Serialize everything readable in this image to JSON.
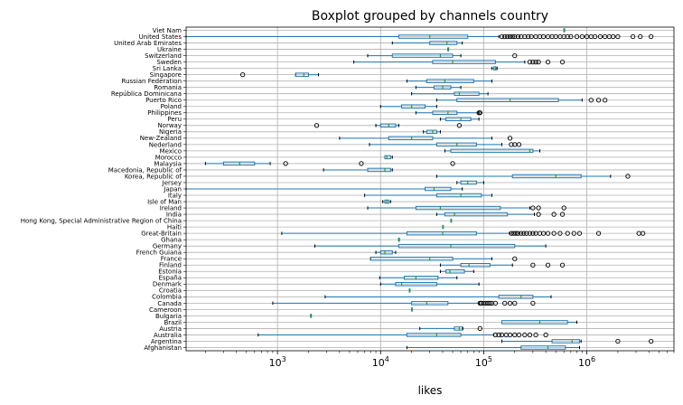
{
  "chart_data": {
    "type": "boxplot",
    "title": "Boxplot grouped by channels country",
    "xlabel": "likes",
    "ylabel": "",
    "xscale": "log",
    "xlim": [
      130,
      7000000
    ],
    "x_ticks": [
      {
        "value": 1000,
        "base": "10",
        "exp": "3"
      },
      {
        "value": 10000,
        "base": "10",
        "exp": "4"
      },
      {
        "value": 100000,
        "base": "10",
        "exp": "5"
      },
      {
        "value": 1000000,
        "base": "10",
        "exp": "6"
      }
    ],
    "grid": true,
    "colors": {
      "box": "#1f77b4",
      "median": "#2ca02c",
      "flier": "#000000",
      "grid": "#b0b0b0"
    },
    "categories": [
      "Afghanistan",
      "Argentina",
      "Australia",
      "Austria",
      "Brazil",
      "Bulgaria",
      "Cameroon",
      "Canada",
      "Colombia",
      "Croatia",
      "Denmark",
      "España",
      "Estonia",
      "Finland",
      "France",
      "French Guiana",
      "Germany",
      "Ghana",
      "Great-Britain",
      "Haiti",
      "Hong Kong, Special Administrative Region of China",
      "India",
      "Ireland",
      "Isle of Man",
      "Italy",
      "Japan",
      "Jersey",
      "Korea, Republic of",
      "Macedonia, Republic of",
      "Malaysia",
      "Morocco",
      "Mexico",
      "Nederland",
      "New-Zealand",
      "Nigeria",
      "Norway",
      "Peru",
      "Philippines",
      "Poland",
      "Puerto Rico",
      "República Dominicana",
      "Romania",
      "Russian Federation",
      "Singapore",
      "Sri Lanka",
      "Sweden",
      "Switzerland",
      "Ukraine",
      "United Arab Emirates",
      "United States",
      "Viet Nam"
    ],
    "boxes": [
      {
        "min": 18000,
        "q1": 230000,
        "med": 420000,
        "q3": 620000,
        "max": 850000,
        "fliers": []
      },
      {
        "min": 150000,
        "q1": 460000,
        "med": 720000,
        "q3": 850000,
        "max": 880000,
        "fliers": [
          2000000,
          4200000
        ]
      },
      {
        "min": 650,
        "q1": 18000,
        "med": 35000,
        "q3": 60000,
        "max": 125000,
        "fliers": [
          130000,
          140000,
          150000,
          165000,
          180000,
          200000,
          220000,
          250000,
          280000,
          320000,
          400000
        ]
      },
      {
        "min": 24000,
        "q1": 52000,
        "med": 58000,
        "q3": 62000,
        "max": 63000,
        "fliers": [
          92000
        ]
      },
      {
        "min": 150000,
        "q1": 150000,
        "med": 350000,
        "q3": 650000,
        "max": 800000,
        "fliers": []
      },
      {
        "min": 2100,
        "q1": 2100,
        "med": 2100,
        "q3": 2100,
        "max": 2100,
        "fliers": []
      },
      {
        "min": 20000,
        "q1": 20000,
        "med": 20000,
        "q3": 20000,
        "max": 20000,
        "fliers": []
      },
      {
        "min": 900,
        "q1": 20000,
        "med": 28000,
        "q3": 45000,
        "max": 90000,
        "fliers": [
          92000,
          95000,
          100000,
          105000,
          110000,
          115000,
          120000,
          130000,
          160000,
          180000,
          200000,
          300000
        ]
      },
      {
        "min": 2900,
        "q1": 140000,
        "med": 230000,
        "q3": 300000,
        "max": 450000,
        "fliers": []
      },
      {
        "min": 19000,
        "q1": 19000,
        "med": 19000,
        "q3": 19000,
        "max": 19000,
        "fliers": []
      },
      {
        "min": 10000,
        "q1": 14000,
        "med": 16000,
        "q3": 35000,
        "max": 90000,
        "fliers": []
      },
      {
        "min": 9800,
        "q1": 17000,
        "med": 22000,
        "q3": 36000,
        "max": 55000,
        "fliers": []
      },
      {
        "min": 38000,
        "q1": 43000,
        "med": 47000,
        "q3": 65000,
        "max": 80000,
        "fliers": []
      },
      {
        "min": 38000,
        "q1": 60000,
        "med": 72000,
        "q3": 115000,
        "max": 190000,
        "fliers": [
          300000,
          420000,
          580000
        ]
      },
      {
        "min": 8000,
        "q1": 8000,
        "med": 30000,
        "q3": 50000,
        "max": 120000,
        "fliers": [
          200000
        ]
      },
      {
        "min": 9000,
        "q1": 10000,
        "med": 11000,
        "q3": 13000,
        "max": 14000,
        "fliers": []
      },
      {
        "min": 2300,
        "q1": 15000,
        "med": 48000,
        "q3": 200000,
        "max": 400000,
        "fliers": []
      },
      {
        "min": 15000,
        "q1": 15000,
        "med": 15000,
        "q3": 15000,
        "max": 15000,
        "fliers": []
      },
      {
        "min": 1100,
        "q1": 18000,
        "med": 40000,
        "q3": 85000,
        "max": 180000,
        "fliers": [
          185000,
          195000,
          205000,
          215000,
          230000,
          245000,
          260000,
          280000,
          300000,
          320000,
          350000,
          380000,
          420000,
          480000,
          550000,
          650000,
          750000,
          850000,
          1300000,
          3200000,
          3500000
        ]
      },
      {
        "min": 40000,
        "q1": 40000,
        "med": 40000,
        "q3": 40000,
        "max": 40000,
        "fliers": []
      },
      {
        "min": 48000,
        "q1": 48000,
        "med": 48000,
        "q3": 48000,
        "max": 48000,
        "fliers": []
      },
      {
        "min": 35000,
        "q1": 42000,
        "med": 52000,
        "q3": 170000,
        "max": 310000,
        "fliers": [
          340000,
          480000,
          580000
        ]
      },
      {
        "min": 7500,
        "q1": 22000,
        "med": 38000,
        "q3": 145000,
        "max": 280000,
        "fliers": [
          300000,
          340000,
          600000
        ]
      },
      {
        "min": 10500,
        "q1": 11000,
        "med": 11500,
        "q3": 12000,
        "max": 12500,
        "fliers": []
      },
      {
        "min": 7000,
        "q1": 35000,
        "med": 60000,
        "q3": 95000,
        "max": 120000,
        "fliers": []
      },
      {
        "min": 130,
        "q1": 27000,
        "med": 33000,
        "q3": 48000,
        "max": 62000,
        "fliers": []
      },
      {
        "min": 55000,
        "q1": 60000,
        "med": 70000,
        "q3": 85000,
        "max": 100000,
        "fliers": []
      },
      {
        "min": 35000,
        "q1": 190000,
        "med": 500000,
        "q3": 880000,
        "max": 1700000,
        "fliers": [
          2500000
        ]
      },
      {
        "min": 2800,
        "q1": 7500,
        "med": 11000,
        "q3": 12500,
        "max": 13000,
        "fliers": []
      },
      {
        "min": 200,
        "q1": 300,
        "med": 430,
        "q3": 600,
        "max": 850,
        "fliers": [
          1200,
          6500,
          50000
        ]
      },
      {
        "min": 11000,
        "q1": 11000,
        "med": 11500,
        "q3": 12500,
        "max": 13000,
        "fliers": []
      },
      {
        "min": 42000,
        "q1": 48000,
        "med": 280000,
        "q3": 300000,
        "max": 350000,
        "fliers": []
      },
      {
        "min": 7800,
        "q1": 35000,
        "med": 55000,
        "q3": 85000,
        "max": 150000,
        "fliers": [
          185000,
          200000,
          220000
        ]
      },
      {
        "min": 4000,
        "q1": 12000,
        "med": 20000,
        "q3": 32000,
        "max": 120000,
        "fliers": [
          180000
        ]
      },
      {
        "min": 26000,
        "q1": 28000,
        "med": 32000,
        "q3": 35000,
        "max": 38000,
        "fliers": []
      },
      {
        "min": 9000,
        "q1": 10000,
        "med": 12000,
        "q3": 14000,
        "max": 15000,
        "fliers": [
          2400,
          58000
        ]
      },
      {
        "min": 38000,
        "q1": 43000,
        "med": 60000,
        "q3": 75000,
        "max": 90000,
        "fliers": []
      },
      {
        "min": 22000,
        "q1": 32000,
        "med": 45000,
        "q3": 55000,
        "max": 90000,
        "fliers": [
          90000,
          92000
        ]
      },
      {
        "min": 10000,
        "q1": 16000,
        "med": 20000,
        "q3": 27000,
        "max": 35000,
        "fliers": []
      },
      {
        "min": 35000,
        "q1": 55000,
        "med": 180000,
        "q3": 530000,
        "max": 900000,
        "fliers": [
          1100000,
          1300000,
          1500000
        ]
      },
      {
        "min": 20000,
        "q1": 52000,
        "med": 58000,
        "q3": 90000,
        "max": 110000,
        "fliers": []
      },
      {
        "min": 22000,
        "q1": 33000,
        "med": 40000,
        "q3": 48000,
        "max": 60000,
        "fliers": []
      },
      {
        "min": 18000,
        "q1": 28000,
        "med": 42000,
        "q3": 80000,
        "max": 120000,
        "fliers": []
      },
      {
        "min": 1500,
        "q1": 1500,
        "med": 1800,
        "q3": 2000,
        "max": 2500,
        "fliers": [
          460
        ]
      },
      {
        "min": 120000,
        "q1": 125000,
        "med": 130000,
        "q3": 132000,
        "max": 135000,
        "fliers": []
      },
      {
        "min": 5500,
        "q1": 32000,
        "med": 50000,
        "q3": 130000,
        "max": 250000,
        "fliers": [
          280000,
          300000,
          320000,
          340000,
          420000,
          580000
        ]
      },
      {
        "min": 7500,
        "q1": 13000,
        "med": 38000,
        "q3": 50000,
        "max": 60000,
        "fliers": [
          200000
        ]
      },
      {
        "min": 45000,
        "q1": 45000,
        "med": 45000,
        "q3": 45000,
        "max": 45000,
        "fliers": []
      },
      {
        "min": 13000,
        "q1": 30000,
        "med": 44000,
        "q3": 55000,
        "max": 62000,
        "fliers": []
      },
      {
        "min": 130,
        "q1": 15000,
        "med": 30000,
        "q3": 70000,
        "max": 140000,
        "fliers": [
          150000,
          160000,
          170000,
          180000,
          190000,
          200000,
          215000,
          230000,
          250000,
          270000,
          290000,
          320000,
          350000,
          380000,
          420000,
          460000,
          500000,
          550000,
          600000,
          650000,
          700000,
          800000,
          900000,
          1000000,
          1100000,
          1200000,
          1350000,
          1500000,
          1650000,
          1800000,
          2000000,
          2800000,
          3300000,
          4200000
        ]
      },
      {
        "min": 600000,
        "q1": 600000,
        "med": 600000,
        "q3": 600000,
        "max": 600000,
        "fliers": []
      }
    ]
  }
}
